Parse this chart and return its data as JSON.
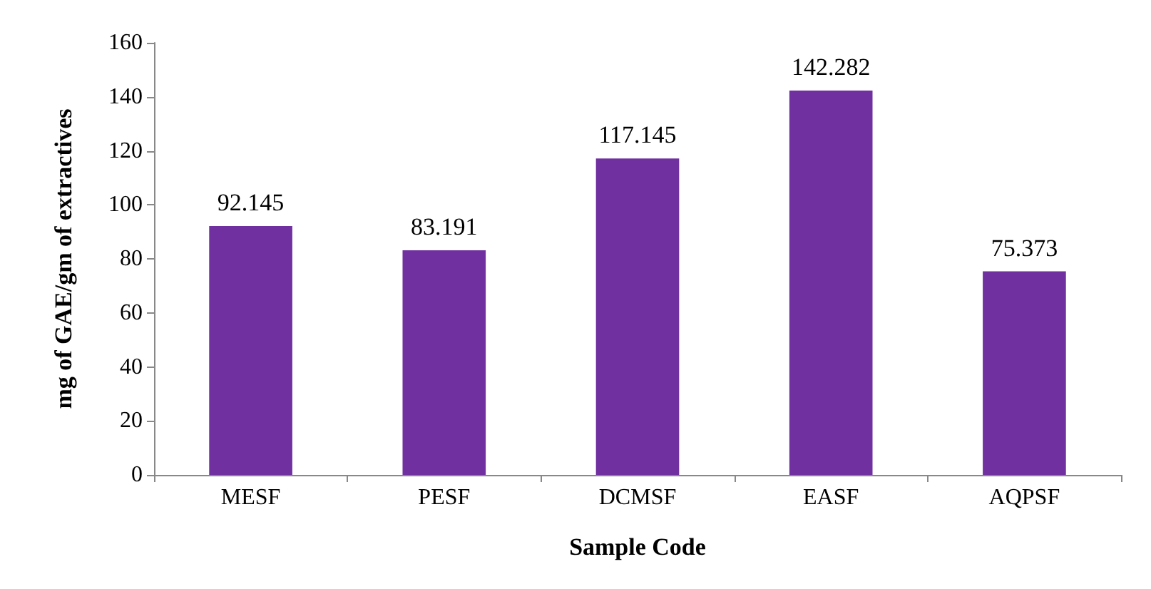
{
  "chart_data": {
    "type": "bar",
    "xlabel": "Sample Code",
    "ylabel": "mg of GAE/gm of extractives",
    "categories": [
      "MESF",
      "PESF",
      "DCMSF",
      "EASF",
      "AQPSF"
    ],
    "values": [
      92.145,
      83.191,
      117.145,
      142.282,
      75.373
    ],
    "color": "#7030a0",
    "ylim": [
      0,
      160
    ],
    "yticks": [
      0,
      20,
      40,
      60,
      80,
      100,
      120,
      140,
      160
    ],
    "grid": false,
    "data_labels": true
  }
}
